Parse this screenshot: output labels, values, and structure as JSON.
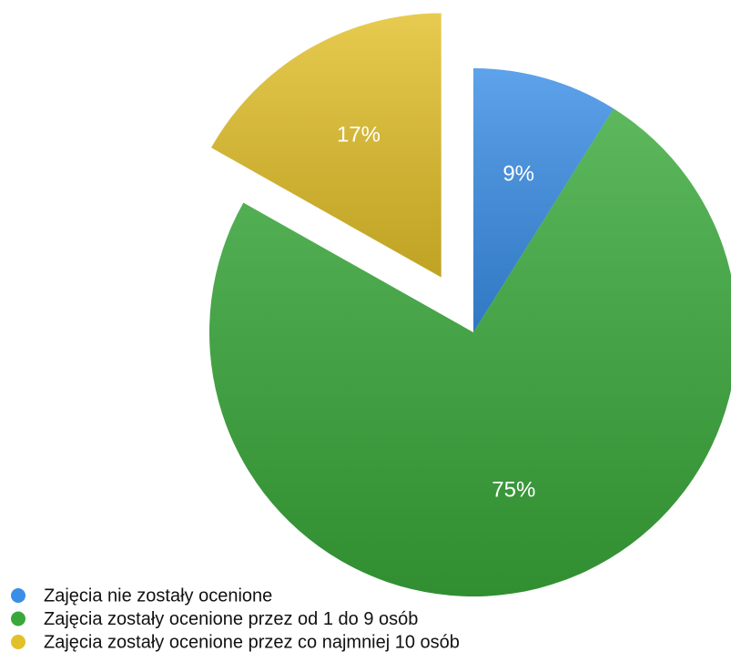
{
  "chart_data": {
    "type": "pie",
    "categories": [
      "Zajęcia nie zostały ocenione",
      "Zajęcia zostały ocenione przez od 1 do 9 osób",
      "Zajęcia zostały ocenione przez co najmniej 10 osób"
    ],
    "values": [
      9,
      75,
      17
    ],
    "value_labels": [
      "9%",
      "75%",
      "17%"
    ],
    "colors": [
      "#3a8ee6",
      "#39a83a",
      "#e2c02a"
    ],
    "exploded": [
      false,
      false,
      true
    ],
    "legend": "bottom-left"
  }
}
